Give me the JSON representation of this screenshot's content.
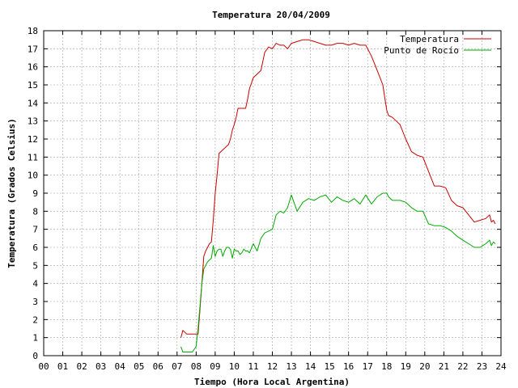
{
  "chart_data": {
    "type": "line",
    "title": "Temperatura 20/04/2009",
    "xlabel": "Tiempo (Hora Local Argentina)",
    "ylabel": "Temperatura (Grados Celsius)",
    "xlim": [
      0,
      24
    ],
    "ylim": [
      0,
      18
    ],
    "xticks": [
      "00",
      "01",
      "02",
      "03",
      "04",
      "05",
      "06",
      "07",
      "08",
      "09",
      "10",
      "11",
      "12",
      "13",
      "14",
      "15",
      "16",
      "17",
      "18",
      "19",
      "20",
      "21",
      "22",
      "23",
      "24"
    ],
    "yticks": [
      "0",
      "1",
      "2",
      "3",
      "4",
      "5",
      "6",
      "7",
      "8",
      "9",
      "10",
      "11",
      "12",
      "13",
      "14",
      "15",
      "16",
      "17",
      "18"
    ],
    "grid": true,
    "legend_position": "top-right",
    "series": [
      {
        "name": "Temperatura",
        "color": "#cc0000",
        "x": [
          7.2,
          7.3,
          7.5,
          7.8,
          8.0,
          8.1,
          8.2,
          8.3,
          8.4,
          8.5,
          8.6,
          8.7,
          8.8,
          8.9,
          9.0,
          9.1,
          9.2,
          9.3,
          9.4,
          9.5,
          9.6,
          9.7,
          9.8,
          9.9,
          10.0,
          10.1,
          10.2,
          10.3,
          10.4,
          10.5,
          10.6,
          10.7,
          10.8,
          11.0,
          11.2,
          11.4,
          11.6,
          11.8,
          12.0,
          12.2,
          12.4,
          12.6,
          12.8,
          13.0,
          13.3,
          13.6,
          13.9,
          14.2,
          14.5,
          14.8,
          15.1,
          15.4,
          15.7,
          16.0,
          16.3,
          16.6,
          16.9,
          17.2,
          17.5,
          17.8,
          18.0,
          18.1,
          18.3,
          18.5,
          18.7,
          19.0,
          19.3,
          19.6,
          19.9,
          20.2,
          20.5,
          20.8,
          21.1,
          21.4,
          21.7,
          22.0,
          22.3,
          22.6,
          22.9,
          23.2,
          23.4,
          23.5,
          23.6,
          23.7
        ],
        "y": [
          1.0,
          1.4,
          1.2,
          1.2,
          1.2,
          1.2,
          2.5,
          4.0,
          5.5,
          5.8,
          6.0,
          6.2,
          6.3,
          7.5,
          9.0,
          10.0,
          11.2,
          11.3,
          11.4,
          11.5,
          11.6,
          11.7,
          12.0,
          12.5,
          12.8,
          13.2,
          13.7,
          13.7,
          13.7,
          13.7,
          13.7,
          14.2,
          14.8,
          15.4,
          15.6,
          15.8,
          16.8,
          17.1,
          17.0,
          17.3,
          17.2,
          17.2,
          17.0,
          17.3,
          17.4,
          17.5,
          17.5,
          17.4,
          17.3,
          17.2,
          17.2,
          17.3,
          17.3,
          17.2,
          17.3,
          17.2,
          17.2,
          16.6,
          15.8,
          15.0,
          13.6,
          13.3,
          13.2,
          13.0,
          12.8,
          12.0,
          11.3,
          11.1,
          11.0,
          10.2,
          9.4,
          9.4,
          9.3,
          8.6,
          8.3,
          8.2,
          7.8,
          7.4,
          7.5,
          7.6,
          7.8,
          7.4,
          7.5,
          7.3
        ]
      },
      {
        "name": "Punto de Rocío",
        "color": "#00aa00",
        "x": [
          7.2,
          7.3,
          7.5,
          7.8,
          8.0,
          8.1,
          8.2,
          8.3,
          8.4,
          8.5,
          8.6,
          8.7,
          8.8,
          8.9,
          9.0,
          9.1,
          9.2,
          9.3,
          9.4,
          9.5,
          9.6,
          9.7,
          9.8,
          9.9,
          10.0,
          10.1,
          10.2,
          10.3,
          10.4,
          10.5,
          10.6,
          10.7,
          10.8,
          11.0,
          11.2,
          11.4,
          11.6,
          11.8,
          12.0,
          12.2,
          12.4,
          12.6,
          12.8,
          13.0,
          13.3,
          13.6,
          13.9,
          14.2,
          14.5,
          14.8,
          15.1,
          15.4,
          15.7,
          16.0,
          16.3,
          16.6,
          16.9,
          17.2,
          17.5,
          17.8,
          18.0,
          18.1,
          18.3,
          18.5,
          18.7,
          19.0,
          19.3,
          19.6,
          19.9,
          20.2,
          20.5,
          20.8,
          21.1,
          21.4,
          21.7,
          22.0,
          22.3,
          22.6,
          22.9,
          23.2,
          23.4,
          23.5,
          23.6,
          23.7
        ],
        "y": [
          0.5,
          0.2,
          0.2,
          0.2,
          0.5,
          1.5,
          2.7,
          4.0,
          4.8,
          5.0,
          5.2,
          5.3,
          5.4,
          6.1,
          5.5,
          5.8,
          5.9,
          5.9,
          5.5,
          5.8,
          6.0,
          6.0,
          5.9,
          5.4,
          5.9,
          5.8,
          5.8,
          5.6,
          5.7,
          5.9,
          5.8,
          5.8,
          5.7,
          6.2,
          5.8,
          6.5,
          6.8,
          6.9,
          7.0,
          7.8,
          8.0,
          7.9,
          8.2,
          8.9,
          8.0,
          8.5,
          8.7,
          8.6,
          8.8,
          8.9,
          8.5,
          8.8,
          8.6,
          8.5,
          8.7,
          8.4,
          8.9,
          8.4,
          8.8,
          9.0,
          9.0,
          8.8,
          8.6,
          8.6,
          8.6,
          8.5,
          8.2,
          8.0,
          8.0,
          7.3,
          7.2,
          7.2,
          7.1,
          6.9,
          6.6,
          6.4,
          6.2,
          6.0,
          6.0,
          6.2,
          6.4,
          6.1,
          6.3,
          6.2
        ]
      }
    ]
  }
}
